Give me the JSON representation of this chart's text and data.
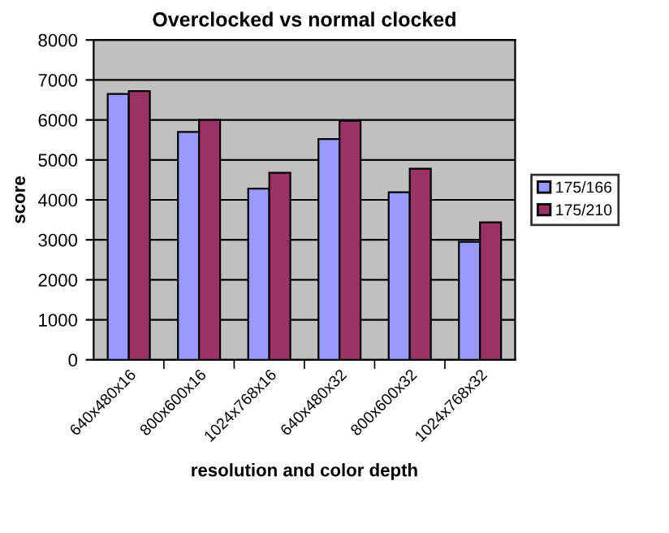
{
  "chart_data": {
    "type": "bar",
    "title": "Overclocked vs normal clocked",
    "xlabel": "resolution and color depth",
    "ylabel": "score",
    "categories": [
      "640x480x16",
      "800x600x16",
      "1024x768x16",
      "640x480x32",
      "800x600x32",
      "1024x768x32"
    ],
    "series": [
      {
        "name": "175/166",
        "color": "#9999ff",
        "values": [
          6650,
          5700,
          4280,
          5520,
          4190,
          2950
        ]
      },
      {
        "name": "175/210",
        "color": "#993366",
        "values": [
          6720,
          6000,
          4680,
          5980,
          4780,
          3440
        ]
      }
    ],
    "ylim": [
      0,
      8000
    ],
    "yticks": [
      0,
      1000,
      2000,
      3000,
      4000,
      5000,
      6000,
      7000,
      8000
    ],
    "grid": "y",
    "legend": "right"
  }
}
